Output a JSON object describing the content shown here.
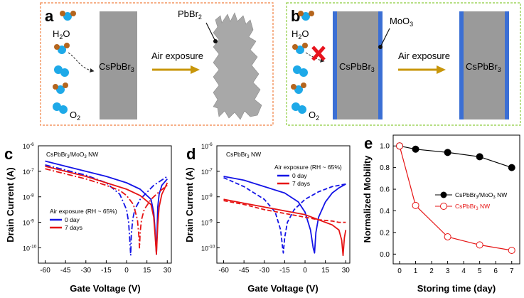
{
  "panel_letters": {
    "a": "a",
    "b": "b",
    "c": "c",
    "d": "d",
    "e": "e"
  },
  "schematic_a": {
    "water_label": "H",
    "water_sub": "2",
    "water_tail": "O",
    "oxygen_label": "O",
    "oxygen_sub": "2",
    "crystal_label": "CsPbBr",
    "crystal_sub": "3",
    "arrow_label": "Air exposure",
    "product_label": "PbBr",
    "product_sub": "2"
  },
  "schematic_b": {
    "water_label": "H",
    "water_sub": "2",
    "water_tail": "O",
    "oxygen_label": "O",
    "oxygen_sub": "2",
    "crystal_label": "CsPbBr",
    "crystal_sub": "3",
    "shell_label": "MoO",
    "shell_sub": "3",
    "arrow_label": "Air exposure",
    "after_label": "CsPbBr",
    "after_sub": "3"
  },
  "colors": {
    "blue": "#1414e6",
    "red": "#e61414",
    "pbbr2_gray": "#a8a8a8",
    "shell_blue": "#3b6fd4",
    "arrow_gold": "#c8960a",
    "water_blue": "#1ea9e8",
    "water_h": "#b5651d",
    "box_a": "#f08040",
    "box_b": "#8ccc3c"
  },
  "chart_data": [
    {
      "panel": "c",
      "type": "line",
      "title": "CsPbBr3/MoO3 NW",
      "title_parts": {
        "a": "CsPbBr",
        "s1": "3",
        "b": "/MoO",
        "s2": "3",
        "c": " NW"
      },
      "xlabel": "Gate Voltage (V)",
      "ylabel": "Drain Current (A)",
      "xlim": [
        -65,
        33
      ],
      "ylim_log10": [
        -10.6,
        -6
      ],
      "xticks": [
        "-60",
        "-45",
        "-30",
        "-15",
        "0",
        "15",
        "30"
      ],
      "xtick_values": [
        -60,
        -45,
        -30,
        -15,
        0,
        15,
        30
      ],
      "yticks": [
        "10",
        "10",
        "10",
        "10",
        "10"
      ],
      "ytick_exponents": [
        "-10",
        "-9",
        "-8",
        "-7",
        "-6"
      ],
      "ytick_values": [
        -10,
        -9,
        -8,
        -7,
        -6
      ],
      "legend_title": "Air exposure (RH ~ 65%)",
      "legend": [
        "0 day",
        "7 days"
      ],
      "legend_position": "bottom-left",
      "series": [
        {
          "name": "0 day",
          "style": "solid",
          "color": "blue",
          "x": [
            -60,
            -45,
            -30,
            -15,
            0,
            10,
            18,
            20,
            21,
            22,
            23,
            24,
            26,
            30
          ],
          "y": [
            -6.6,
            -6.8,
            -7.0,
            -7.2,
            -7.45,
            -7.7,
            -8.1,
            -8.6,
            -9.3,
            -10.25,
            -8.4,
            -7.9,
            -7.55,
            -7.3
          ]
        },
        {
          "name": "0 day",
          "style": "dash-dot",
          "color": "blue",
          "x": [
            -60,
            -45,
            -30,
            -15,
            -5,
            0,
            1.5,
            2.5,
            3,
            3.5,
            4.5,
            6,
            10,
            20,
            30
          ],
          "y": [
            -6.75,
            -6.95,
            -7.15,
            -7.45,
            -7.9,
            -8.5,
            -9.0,
            -9.8,
            -10.3,
            -9.5,
            -8.9,
            -8.5,
            -8.1,
            -7.55,
            -7.2
          ]
        },
        {
          "name": "7 days",
          "style": "solid",
          "color": "red",
          "x": [
            -60,
            -45,
            -30,
            -15,
            0,
            10,
            18,
            20,
            21,
            22,
            23,
            24,
            26,
            30
          ],
          "y": [
            -6.8,
            -7.0,
            -7.2,
            -7.45,
            -7.7,
            -7.95,
            -8.3,
            -8.8,
            -9.5,
            -10.25,
            -9.1,
            -8.4,
            -7.9,
            -7.45
          ]
        },
        {
          "name": "7 days",
          "style": "dash-dot",
          "color": "red",
          "x": [
            -60,
            -45,
            -30,
            -15,
            -5,
            0,
            5,
            8,
            9,
            9.5,
            10,
            11,
            13,
            18,
            24,
            30
          ],
          "y": [
            -6.9,
            -7.1,
            -7.3,
            -7.55,
            -7.75,
            -7.95,
            -8.3,
            -8.9,
            -9.5,
            -10.0,
            -9.4,
            -8.9,
            -8.5,
            -8.1,
            -7.8,
            -7.55
          ]
        }
      ]
    },
    {
      "panel": "d",
      "type": "line",
      "title": "CsPbBr3 NW",
      "title_parts": {
        "a": "CsPbBr",
        "s1": "3",
        "c": " NW"
      },
      "xlabel": "Gate Voltage (V)",
      "ylabel": "Drain Current (A)",
      "xlim": [
        -65,
        33
      ],
      "ylim_log10": [
        -10.6,
        -6
      ],
      "xticks": [
        "-60",
        "-45",
        "-30",
        "-15",
        "0",
        "15",
        "30"
      ],
      "xtick_values": [
        -60,
        -45,
        -30,
        -15,
        0,
        15,
        30
      ],
      "yticks": [
        "10",
        "10",
        "10",
        "10",
        "10"
      ],
      "ytick_exponents": [
        "-10",
        "-9",
        "-8",
        "-7",
        "-6"
      ],
      "ytick_values": [
        -10,
        -9,
        -8,
        -7,
        -6
      ],
      "legend_title": "Air exposure (RH ~ 65%)",
      "legend": [
        "0 day",
        "7 days"
      ],
      "legend_position": "top-right",
      "series": [
        {
          "name": "0 day",
          "style": "solid",
          "color": "blue",
          "x": [
            -60,
            -45,
            -30,
            -15,
            -5,
            0,
            4,
            6,
            7,
            8,
            10,
            15,
            20,
            25,
            30
          ],
          "y": [
            -7.2,
            -7.35,
            -7.6,
            -7.85,
            -8.2,
            -8.6,
            -9.3,
            -10.0,
            -10.2,
            -9.4,
            -8.8,
            -8.2,
            -7.85,
            -7.65,
            -7.5
          ]
        },
        {
          "name": "0 day",
          "style": "dash",
          "color": "blue",
          "x": [
            -60,
            -45,
            -30,
            -22,
            -18,
            -16.5,
            -16,
            -15,
            -13,
            -8,
            0,
            10,
            20,
            30
          ],
          "y": [
            -7.25,
            -7.6,
            -8.1,
            -8.6,
            -9.3,
            -10.0,
            -10.2,
            -9.6,
            -9.0,
            -8.5,
            -8.1,
            -7.8,
            -7.6,
            -7.5
          ]
        },
        {
          "name": "7 days",
          "style": "solid",
          "color": "red",
          "x": [
            -60,
            -45,
            -30,
            -15,
            0,
            10,
            20,
            25,
            27,
            28,
            29,
            30
          ],
          "y": [
            -8.1,
            -8.25,
            -8.4,
            -8.55,
            -8.7,
            -8.9,
            -9.1,
            -9.3,
            -9.7,
            -10.3,
            -9.6,
            -9.3
          ]
        },
        {
          "name": "7 days",
          "style": "dash",
          "color": "red",
          "x": [
            -60,
            -45,
            -30,
            -15,
            0,
            10,
            20,
            25,
            30
          ],
          "y": [
            -8.15,
            -8.3,
            -8.5,
            -8.65,
            -8.8,
            -8.9,
            -8.95,
            -9.0,
            -9.0
          ]
        }
      ]
    },
    {
      "panel": "e",
      "type": "line",
      "xlabel": "Storing time (day)",
      "ylabel": "Normalized Mobility",
      "xlim": [
        -0.4,
        7.5
      ],
      "ylim": [
        -0.09,
        1.1
      ],
      "xticks": [
        "0",
        "1",
        "2",
        "3",
        "4",
        "5",
        "6",
        "7"
      ],
      "xtick_values": [
        0,
        1,
        2,
        3,
        4,
        5,
        6,
        7
      ],
      "yticks": [
        "0.0",
        "0.2",
        "0.4",
        "0.6",
        "0.8",
        "1.0"
      ],
      "ytick_values": [
        0,
        0.2,
        0.4,
        0.6,
        0.8,
        1.0
      ],
      "legend_position": "right",
      "series": [
        {
          "name": "CsPbBr3/MoO3 NW",
          "name_parts": {
            "a": "CsPbBr",
            "s1": "3",
            "b": "/MoO",
            "s2": "3",
            "c": " NW"
          },
          "color": "black",
          "marker": "filled",
          "x": [
            0,
            1,
            3,
            5,
            7
          ],
          "y": [
            1.0,
            0.97,
            0.94,
            0.9,
            0.8
          ]
        },
        {
          "name": "CsPbBr3 NW",
          "name_parts": {
            "a": "CsPbBr",
            "s1": "3",
            "c": " NW"
          },
          "color": "red",
          "marker": "open",
          "x": [
            0,
            1,
            3,
            5,
            7
          ],
          "y": [
            1.0,
            0.45,
            0.16,
            0.085,
            0.035
          ]
        }
      ]
    }
  ]
}
